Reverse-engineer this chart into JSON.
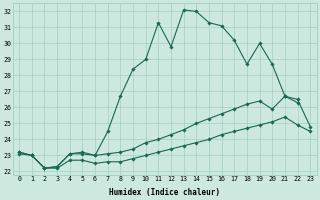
{
  "title": "",
  "xlabel": "Humidex (Indice chaleur)",
  "bg_color": "#cce8df",
  "grid_color": "#99ccbb",
  "line_color": "#1a6655",
  "xlim": [
    -0.5,
    23.5
  ],
  "ylim": [
    21.8,
    32.5
  ],
  "yticks": [
    22,
    23,
    24,
    25,
    26,
    27,
    28,
    29,
    30,
    31,
    32
  ],
  "xticks": [
    0,
    1,
    2,
    3,
    4,
    5,
    6,
    7,
    8,
    9,
    10,
    11,
    12,
    13,
    14,
    15,
    16,
    17,
    18,
    19,
    20,
    21,
    22,
    23
  ],
  "line1_x": [
    0,
    1,
    2,
    3,
    4,
    5,
    6,
    7,
    8,
    9,
    10,
    11,
    12,
    13,
    14,
    15,
    16,
    17,
    18,
    19,
    20,
    21,
    22
  ],
  "line1_y": [
    23.2,
    23.0,
    22.2,
    22.3,
    23.1,
    23.2,
    23.0,
    24.5,
    26.7,
    28.4,
    29.0,
    31.3,
    29.8,
    32.1,
    32.0,
    31.3,
    31.1,
    30.2,
    28.7,
    30.0,
    28.7,
    26.7,
    26.3
  ],
  "line2_x": [
    0,
    1,
    2,
    3,
    4,
    5,
    6,
    7,
    8,
    9,
    10,
    11,
    12,
    13,
    14,
    15,
    16,
    17,
    18,
    19,
    20,
    21,
    22,
    23
  ],
  "line2_y": [
    23.2,
    23.0,
    22.2,
    22.3,
    23.1,
    23.1,
    23.0,
    23.1,
    23.2,
    23.4,
    23.8,
    24.0,
    24.3,
    24.6,
    25.0,
    25.3,
    25.6,
    25.9,
    26.2,
    26.4,
    25.9,
    26.7,
    26.5,
    24.8
  ],
  "line3_x": [
    0,
    1,
    2,
    3,
    4,
    5,
    6,
    7,
    8,
    9,
    10,
    11,
    12,
    13,
    14,
    15,
    16,
    17,
    18,
    19,
    20,
    21,
    22,
    23
  ],
  "line3_y": [
    23.1,
    23.0,
    22.2,
    22.2,
    22.7,
    22.7,
    22.5,
    22.6,
    22.6,
    22.8,
    23.0,
    23.2,
    23.4,
    23.6,
    23.8,
    24.0,
    24.3,
    24.5,
    24.7,
    24.9,
    25.1,
    25.4,
    24.9,
    24.5
  ],
  "marker": "D",
  "markersize": 1.8,
  "linewidth": 0.8
}
